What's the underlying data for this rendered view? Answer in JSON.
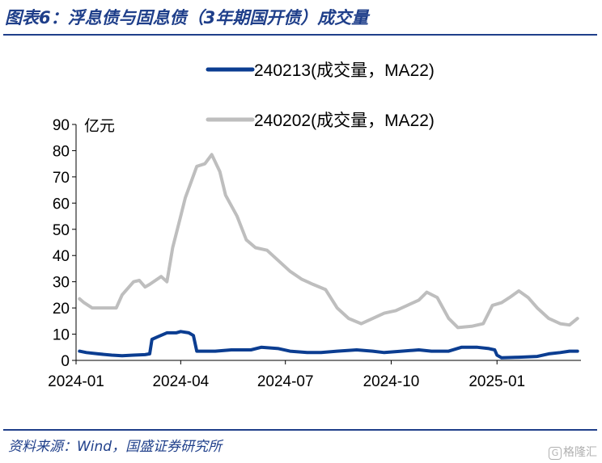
{
  "title": "图表6：浮息债与固息债（3年期国开债）成交量",
  "source": "资料来源：Wind，国盛证券研究所",
  "watermark": "格隆汇",
  "chart_data": {
    "type": "line",
    "ylabel": "亿元",
    "ylim": [
      0,
      90
    ],
    "yticks": [
      0,
      10,
      20,
      30,
      40,
      50,
      60,
      70,
      80,
      90
    ],
    "xlim": [
      "2024-01-01",
      "2025-03-15"
    ],
    "xticks": [
      {
        "label": "2024-01",
        "date": "2024-01-01"
      },
      {
        "label": "2024-04",
        "date": "2024-04-01"
      },
      {
        "label": "2024-07",
        "date": "2024-07-01"
      },
      {
        "label": "2024-10",
        "date": "2024-10-01"
      },
      {
        "label": "2025-01",
        "date": "2025-01-01"
      }
    ],
    "legend_position": "top",
    "series": [
      {
        "name": "240213(成交量，MA22)",
        "color": "#0b3d91",
        "points": [
          [
            "2024-01-04",
            3.5
          ],
          [
            "2024-01-10",
            3.0
          ],
          [
            "2024-01-20",
            2.5
          ],
          [
            "2024-02-01",
            2.0
          ],
          [
            "2024-02-10",
            1.8
          ],
          [
            "2024-02-20",
            2.0
          ],
          [
            "2024-03-01",
            2.2
          ],
          [
            "2024-03-05",
            2.5
          ],
          [
            "2024-03-07",
            8.0
          ],
          [
            "2024-03-12",
            9.0
          ],
          [
            "2024-03-20",
            10.5
          ],
          [
            "2024-03-28",
            10.5
          ],
          [
            "2024-04-01",
            11.0
          ],
          [
            "2024-04-08",
            10.5
          ],
          [
            "2024-04-12",
            9.5
          ],
          [
            "2024-04-15",
            3.5
          ],
          [
            "2024-05-01",
            3.5
          ],
          [
            "2024-05-15",
            4.0
          ],
          [
            "2024-06-01",
            4.0
          ],
          [
            "2024-06-10",
            5.0
          ],
          [
            "2024-06-25",
            4.5
          ],
          [
            "2024-07-05",
            3.5
          ],
          [
            "2024-07-20",
            3.0
          ],
          [
            "2024-08-01",
            3.0
          ],
          [
            "2024-08-15",
            3.5
          ],
          [
            "2024-09-01",
            4.0
          ],
          [
            "2024-09-15",
            3.5
          ],
          [
            "2024-09-25",
            3.0
          ],
          [
            "2024-10-10",
            3.5
          ],
          [
            "2024-10-25",
            4.0
          ],
          [
            "2024-11-05",
            3.5
          ],
          [
            "2024-11-20",
            3.5
          ],
          [
            "2024-12-01",
            5.0
          ],
          [
            "2024-12-15",
            5.0
          ],
          [
            "2024-12-25",
            4.5
          ],
          [
            "2024-12-30",
            4.0
          ],
          [
            "2025-01-01",
            2.0
          ],
          [
            "2025-01-05",
            1.0
          ],
          [
            "2025-01-20",
            1.2
          ],
          [
            "2025-02-05",
            1.5
          ],
          [
            "2025-02-15",
            2.5
          ],
          [
            "2025-02-25",
            3.0
          ],
          [
            "2025-03-05",
            3.5
          ],
          [
            "2025-03-12",
            3.5
          ]
        ]
      },
      {
        "name": "240202(成交量，MA22)",
        "color": "#bebebe",
        "points": [
          [
            "2024-01-04",
            23.5
          ],
          [
            "2024-01-08",
            22.0
          ],
          [
            "2024-01-15",
            20.0
          ],
          [
            "2024-01-25",
            20.0
          ],
          [
            "2024-02-05",
            20.0
          ],
          [
            "2024-02-10",
            25.0
          ],
          [
            "2024-02-20",
            30.0
          ],
          [
            "2024-02-25",
            30.5
          ],
          [
            "2024-03-01",
            28.0
          ],
          [
            "2024-03-05",
            29.0
          ],
          [
            "2024-03-15",
            32.0
          ],
          [
            "2024-03-20",
            30.0
          ],
          [
            "2024-03-25",
            43.0
          ],
          [
            "2024-04-01",
            55.0
          ],
          [
            "2024-04-05",
            62.0
          ],
          [
            "2024-04-10",
            68.0
          ],
          [
            "2024-04-15",
            74.0
          ],
          [
            "2024-04-22",
            75.0
          ],
          [
            "2024-04-28",
            78.5
          ],
          [
            "2024-05-05",
            72.0
          ],
          [
            "2024-05-10",
            63.0
          ],
          [
            "2024-05-20",
            55.0
          ],
          [
            "2024-05-28",
            46.0
          ],
          [
            "2024-06-05",
            43.0
          ],
          [
            "2024-06-15",
            42.0
          ],
          [
            "2024-06-25",
            38.0
          ],
          [
            "2024-07-05",
            34.0
          ],
          [
            "2024-07-15",
            31.0
          ],
          [
            "2024-07-25",
            29.0
          ],
          [
            "2024-08-05",
            27.0
          ],
          [
            "2024-08-15",
            20.0
          ],
          [
            "2024-08-25",
            16.0
          ],
          [
            "2024-09-05",
            14.0
          ],
          [
            "2024-09-15",
            16.0
          ],
          [
            "2024-09-25",
            18.0
          ],
          [
            "2024-10-05",
            19.0
          ],
          [
            "2024-10-15",
            21.0
          ],
          [
            "2024-10-25",
            23.0
          ],
          [
            "2024-11-01",
            26.0
          ],
          [
            "2024-11-10",
            24.0
          ],
          [
            "2024-11-20",
            16.0
          ],
          [
            "2024-11-28",
            12.5
          ],
          [
            "2024-12-10",
            13.0
          ],
          [
            "2024-12-20",
            14.0
          ],
          [
            "2024-12-28",
            21.0
          ],
          [
            "2025-01-05",
            22.0
          ],
          [
            "2025-01-12",
            24.0
          ],
          [
            "2025-01-20",
            26.5
          ],
          [
            "2025-01-28",
            24.0
          ],
          [
            "2025-02-05",
            20.0
          ],
          [
            "2025-02-15",
            16.0
          ],
          [
            "2025-02-25",
            14.0
          ],
          [
            "2025-03-05",
            13.5
          ],
          [
            "2025-03-12",
            16.0
          ]
        ]
      }
    ]
  }
}
